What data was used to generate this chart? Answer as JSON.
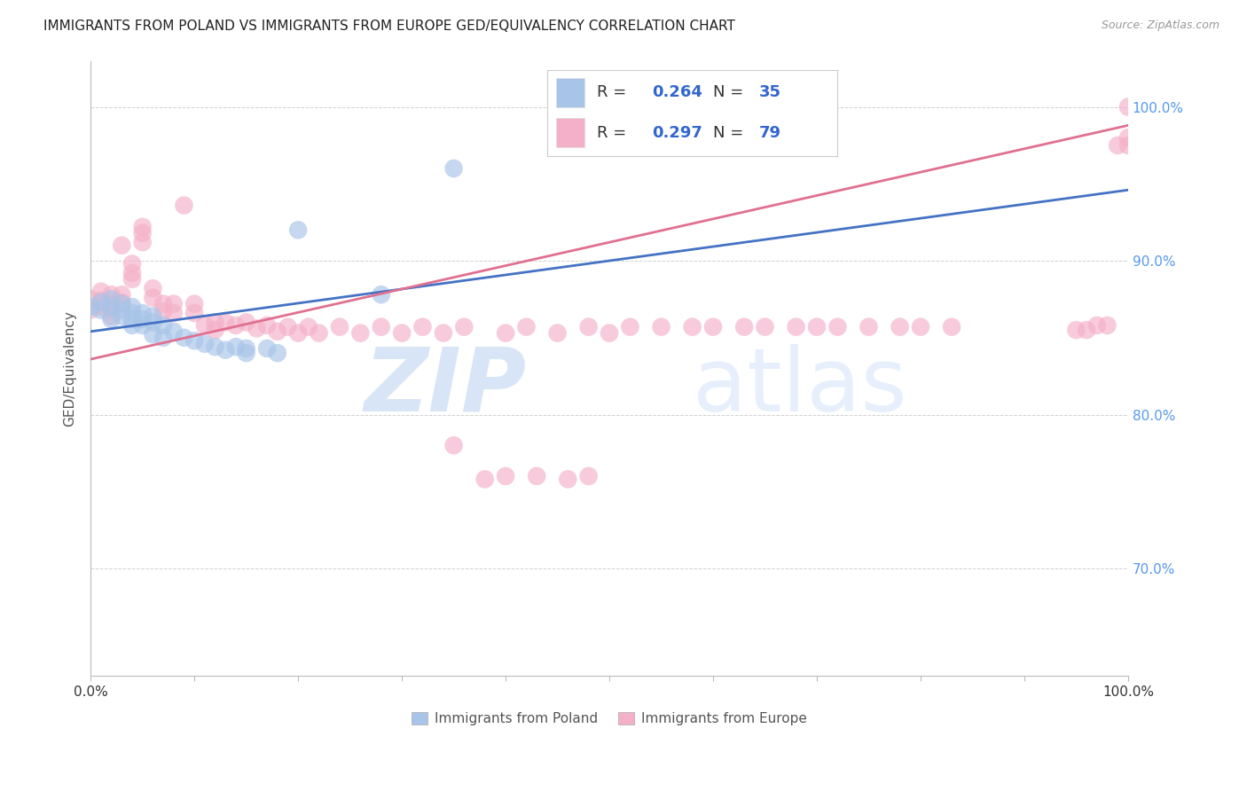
{
  "title": "IMMIGRANTS FROM POLAND VS IMMIGRANTS FROM EUROPE GED/EQUIVALENCY CORRELATION CHART",
  "source": "Source: ZipAtlas.com",
  "ylabel": "GED/Equivalency",
  "legend_label_blue": "Immigrants from Poland",
  "legend_label_pink": "Immigrants from Europe",
  "R_blue": 0.264,
  "N_blue": 35,
  "R_pink": 0.297,
  "N_pink": 79,
  "color_blue": "#a8c4e8",
  "color_pink": "#f4b0c8",
  "line_color_blue": "#4472c4",
  "line_color_pink": "#e07090",
  "x_min": 0.0,
  "x_max": 1.0,
  "y_min": 0.63,
  "y_max": 1.03,
  "right_yticks": [
    0.7,
    0.8,
    0.9,
    1.0
  ],
  "right_yticklabels": [
    "70.0%",
    "80.0%",
    "90.0%",
    "100.0%"
  ],
  "watermark_zip": "ZIP",
  "watermark_atlas": "atlas",
  "blue_line_y_intercept": 0.854,
  "blue_line_slope": 0.092,
  "pink_line_y_intercept": 0.836,
  "pink_line_slope": 0.152,
  "blue_scatter_x": [
    0.0,
    0.01,
    0.01,
    0.02,
    0.02,
    0.02,
    0.03,
    0.03,
    0.03,
    0.04,
    0.04,
    0.04,
    0.04,
    0.05,
    0.05,
    0.05,
    0.06,
    0.06,
    0.06,
    0.07,
    0.07,
    0.08,
    0.09,
    0.1,
    0.11,
    0.12,
    0.13,
    0.14,
    0.15,
    0.15,
    0.17,
    0.18,
    0.2,
    0.28,
    0.35
  ],
  "blue_scatter_y": [
    0.87,
    0.873,
    0.868,
    0.875,
    0.87,
    0.862,
    0.872,
    0.868,
    0.864,
    0.87,
    0.866,
    0.862,
    0.858,
    0.866,
    0.862,
    0.858,
    0.864,
    0.86,
    0.852,
    0.858,
    0.85,
    0.854,
    0.85,
    0.848,
    0.846,
    0.844,
    0.842,
    0.844,
    0.843,
    0.84,
    0.843,
    0.84,
    0.92,
    0.878,
    0.96
  ],
  "pink_scatter_x": [
    0.0,
    0.0,
    0.01,
    0.01,
    0.01,
    0.02,
    0.02,
    0.02,
    0.02,
    0.03,
    0.03,
    0.03,
    0.04,
    0.04,
    0.04,
    0.05,
    0.05,
    0.05,
    0.06,
    0.06,
    0.07,
    0.07,
    0.08,
    0.08,
    0.09,
    0.1,
    0.1,
    0.11,
    0.12,
    0.12,
    0.13,
    0.14,
    0.15,
    0.16,
    0.17,
    0.18,
    0.19,
    0.2,
    0.21,
    0.22,
    0.24,
    0.26,
    0.28,
    0.3,
    0.32,
    0.34,
    0.36,
    0.4,
    0.42,
    0.45,
    0.48,
    0.5,
    0.52,
    0.55,
    0.58,
    0.6,
    0.63,
    0.65,
    0.68,
    0.7,
    0.72,
    0.75,
    0.78,
    0.8,
    0.83,
    0.35,
    0.38,
    0.4,
    0.43,
    0.46,
    0.48,
    0.95,
    0.96,
    0.97,
    0.98,
    0.99,
    1.0,
    1.0,
    1.0
  ],
  "pink_scatter_y": [
    0.875,
    0.868,
    0.88,
    0.874,
    0.87,
    0.878,
    0.872,
    0.868,
    0.864,
    0.91,
    0.878,
    0.873,
    0.898,
    0.892,
    0.888,
    0.918,
    0.922,
    0.912,
    0.882,
    0.876,
    0.872,
    0.867,
    0.872,
    0.866,
    0.936,
    0.872,
    0.866,
    0.858,
    0.86,
    0.855,
    0.86,
    0.858,
    0.86,
    0.856,
    0.858,
    0.854,
    0.857,
    0.853,
    0.857,
    0.853,
    0.857,
    0.853,
    0.857,
    0.853,
    0.857,
    0.853,
    0.857,
    0.853,
    0.857,
    0.853,
    0.857,
    0.853,
    0.857,
    0.857,
    0.857,
    0.857,
    0.857,
    0.857,
    0.857,
    0.857,
    0.857,
    0.857,
    0.857,
    0.857,
    0.857,
    0.78,
    0.758,
    0.76,
    0.76,
    0.758,
    0.76,
    0.855,
    0.855,
    0.858,
    0.858,
    0.975,
    0.975,
    1.0,
    0.98
  ]
}
